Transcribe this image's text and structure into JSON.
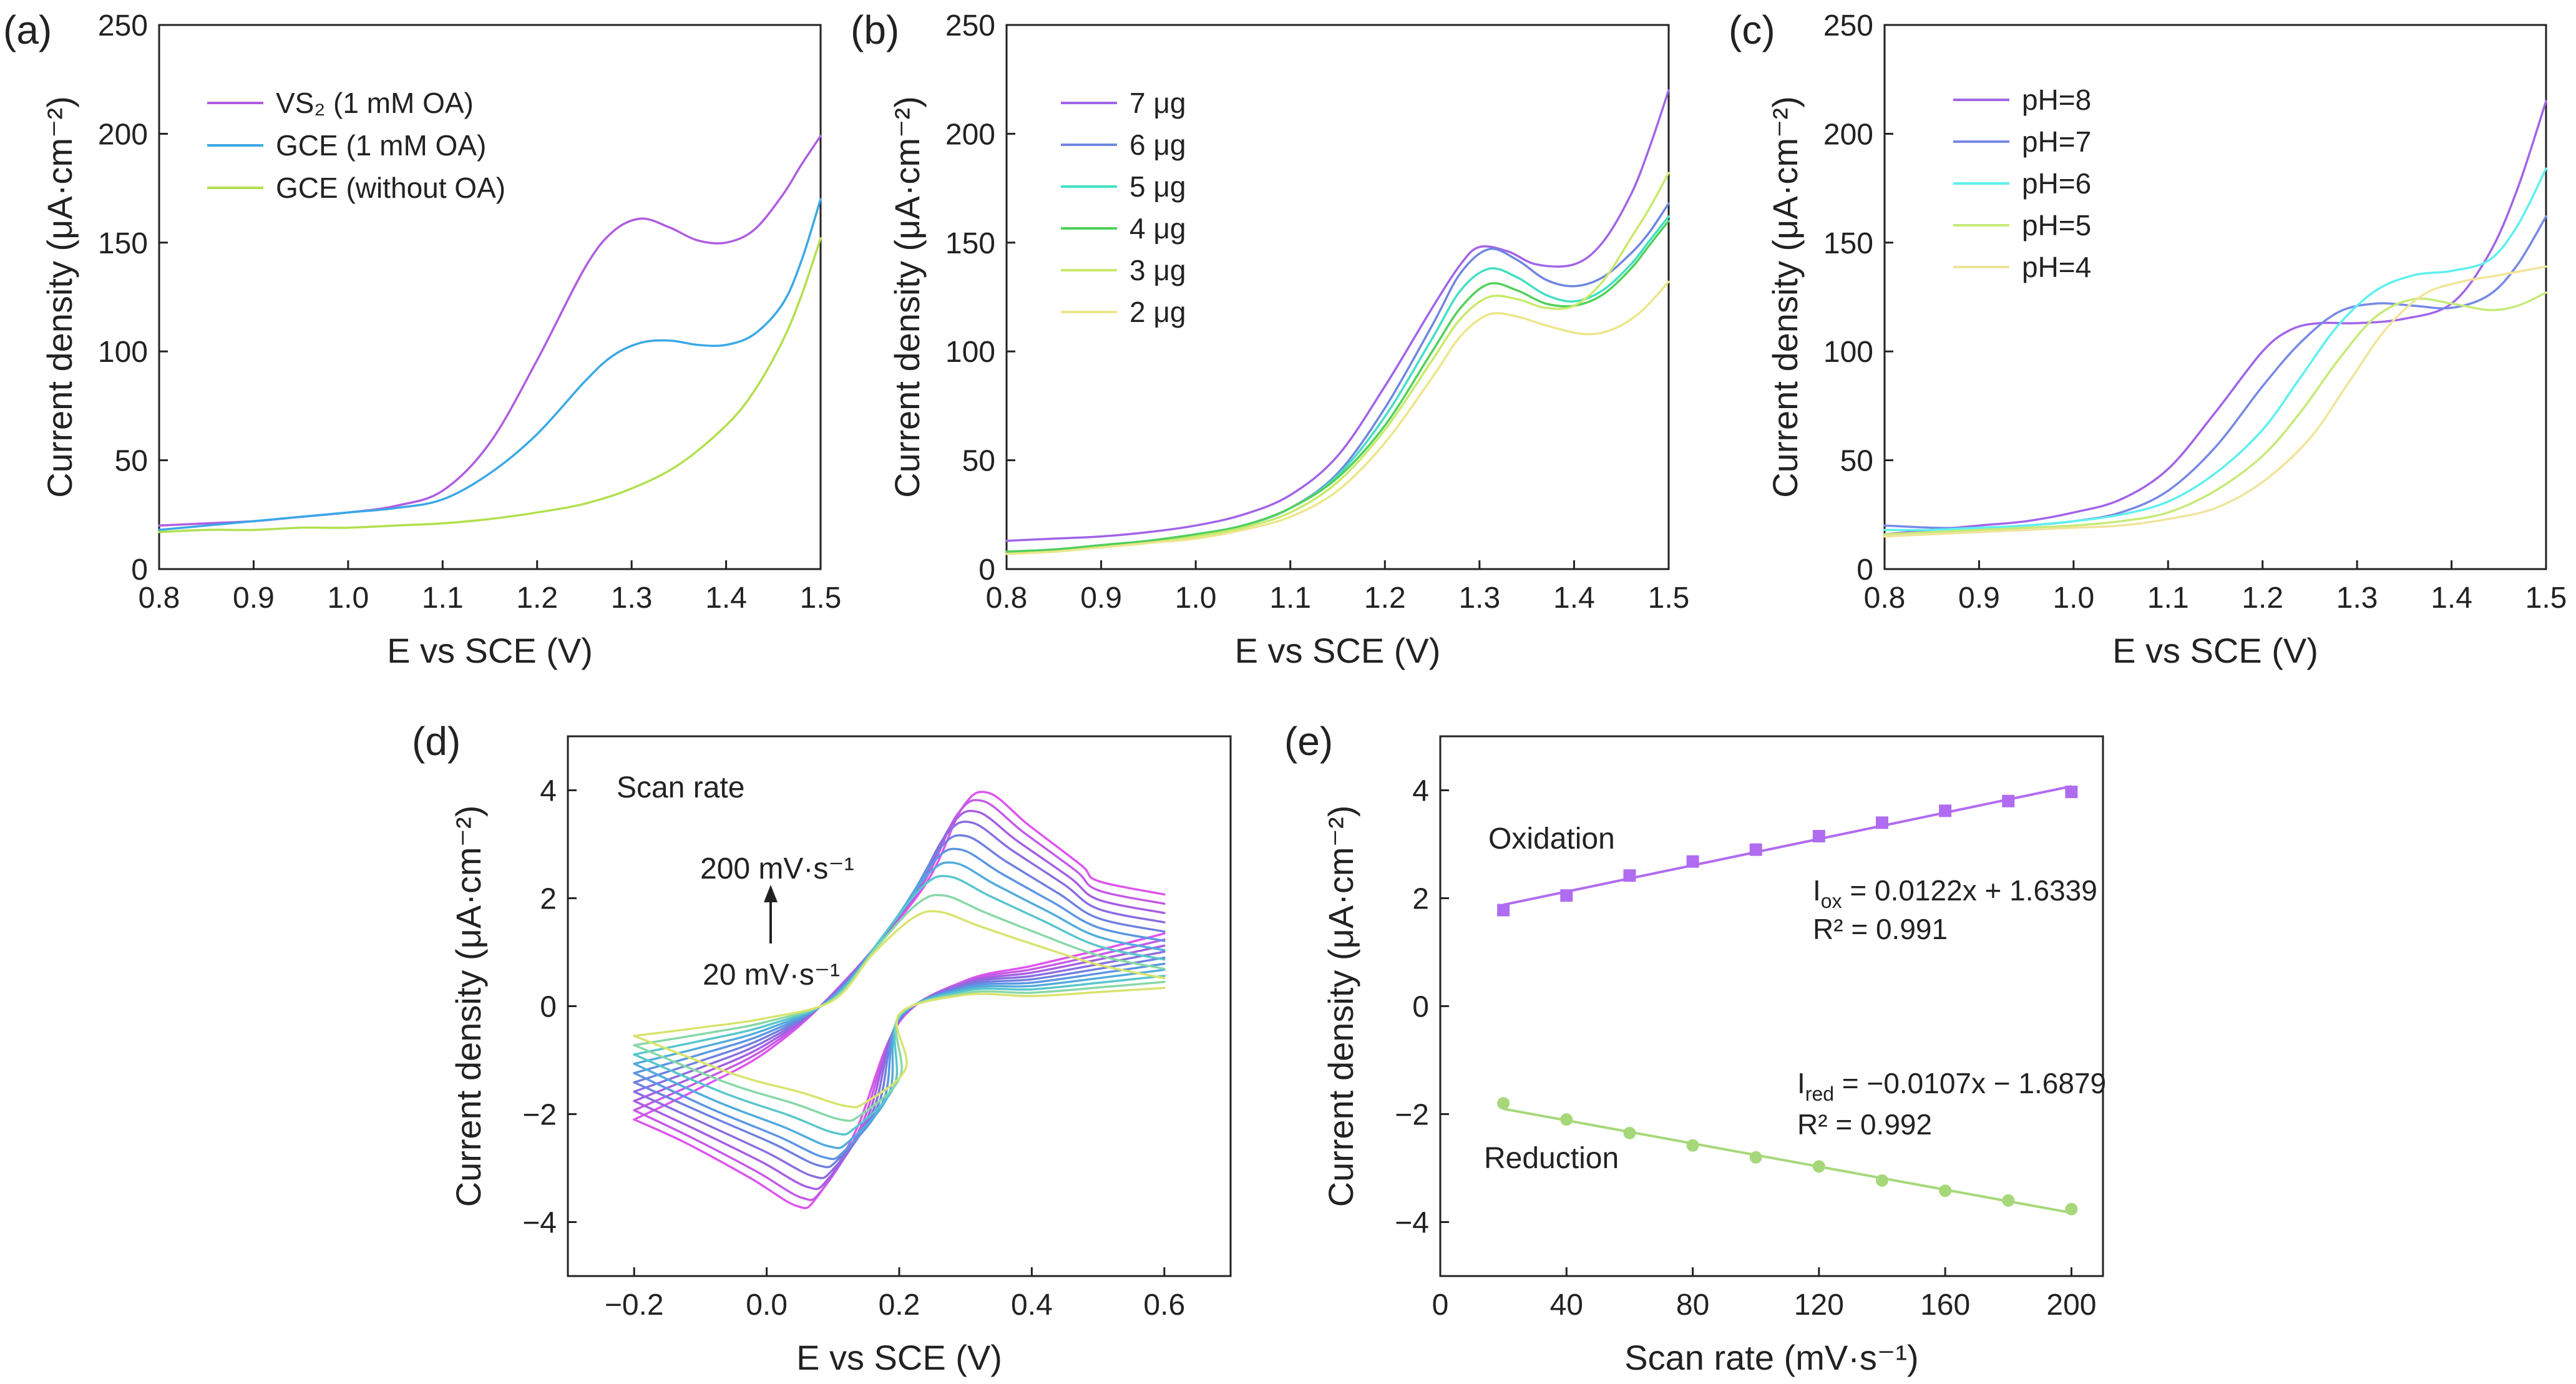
{
  "colors": {
    "purple": "#b05ce0",
    "blue": "#3aa8e6",
    "ygreen": "#b2e04e",
    "p7": "#a164e8",
    "p6": "#6f86e0",
    "p5": "#43dfc4",
    "p4": "#52d05a",
    "p3": "#c8ea6a",
    "p2": "#ece68a",
    "ph8": "#a164e8",
    "ph7": "#7689e6",
    "ph6": "#5ff0ef",
    "ph5": "#c6ea78",
    "ph4": "#f0e49a",
    "cv": [
      "#dd55ee",
      "#c55ae6",
      "#a65ee2",
      "#8a6ee0",
      "#6f80e0",
      "#5c96e2",
      "#52acdc",
      "#58c6cc",
      "#88d8a8",
      "#d8e46e"
    ],
    "ox": "#b06cf0",
    "red": "#a6d87a"
  },
  "chart_data": [
    {
      "id": "a",
      "type": "line",
      "panel_label": "(a)",
      "xlabel": "E vs SCE (V)",
      "ylabel": "Current density (μA·cm⁻²)",
      "xlim": [
        0.8,
        1.5
      ],
      "ylim": [
        0,
        250
      ],
      "xticks": [
        "0.8",
        "0.9",
        "1.0",
        "1.1",
        "1.2",
        "1.3",
        "1.4",
        "1.5"
      ],
      "yticks": [
        "0",
        "50",
        "100",
        "150",
        "200",
        "250"
      ],
      "series": [
        {
          "name": "VS₂  (1 mM OA)",
          "color": "purple",
          "x": [
            0.8,
            0.85,
            0.9,
            0.95,
            1.0,
            1.05,
            1.1,
            1.15,
            1.2,
            1.25,
            1.28,
            1.31,
            1.34,
            1.37,
            1.4,
            1.43,
            1.46,
            1.48,
            1.5
          ],
          "y": [
            20,
            21,
            22,
            24,
            26,
            29,
            36,
            58,
            96,
            138,
            155,
            161,
            157,
            151,
            150,
            156,
            172,
            186,
            199
          ]
        },
        {
          "name": "GCE (1 mM OA)",
          "color": "blue",
          "x": [
            0.8,
            0.85,
            0.9,
            0.95,
            1.0,
            1.05,
            1.1,
            1.15,
            1.2,
            1.25,
            1.28,
            1.31,
            1.34,
            1.37,
            1.4,
            1.43,
            1.46,
            1.48,
            1.5
          ],
          "y": [
            18,
            20,
            22,
            24,
            26,
            28,
            32,
            44,
            62,
            86,
            98,
            104,
            105,
            103,
            103,
            108,
            122,
            142,
            170
          ]
        },
        {
          "name": "GCE (without OA)",
          "color": "ygreen",
          "x": [
            0.8,
            0.85,
            0.9,
            0.95,
            1.0,
            1.05,
            1.1,
            1.15,
            1.2,
            1.25,
            1.3,
            1.35,
            1.4,
            1.43,
            1.46,
            1.48,
            1.5
          ],
          "y": [
            17,
            18,
            18,
            19,
            19,
            20,
            21,
            23,
            26,
            30,
            37,
            48,
            66,
            82,
            105,
            126,
            152
          ]
        }
      ]
    },
    {
      "id": "b",
      "type": "line",
      "panel_label": "(b)",
      "xlabel": "E vs SCE (V)",
      "ylabel": "Current density (μA·cm⁻²)",
      "xlim": [
        0.8,
        1.5
      ],
      "ylim": [
        0,
        250
      ],
      "xticks": [
        "0.8",
        "0.9",
        "1.0",
        "1.1",
        "1.2",
        "1.3",
        "1.4",
        "1.5"
      ],
      "yticks": [
        "0",
        "50",
        "100",
        "150",
        "200",
        "250"
      ],
      "series": [
        {
          "name": "7 μg",
          "color": "p7",
          "x": [
            0.8,
            0.85,
            0.9,
            0.95,
            1.0,
            1.05,
            1.1,
            1.15,
            1.2,
            1.25,
            1.28,
            1.3,
            1.33,
            1.36,
            1.4,
            1.43,
            1.46,
            1.48,
            1.5
          ],
          "y": [
            13,
            14,
            15,
            17,
            20,
            25,
            34,
            52,
            84,
            120,
            140,
            148,
            146,
            140,
            140,
            150,
            172,
            194,
            220
          ]
        },
        {
          "name": "6 μg",
          "color": "p6",
          "x": [
            0.8,
            0.85,
            0.9,
            0.95,
            1.0,
            1.05,
            1.1,
            1.15,
            1.2,
            1.25,
            1.28,
            1.31,
            1.34,
            1.37,
            1.4,
            1.43,
            1.46,
            1.48,
            1.5
          ],
          "y": [
            8,
            9,
            11,
            13,
            16,
            20,
            28,
            44,
            74,
            112,
            136,
            147,
            142,
            133,
            130,
            134,
            145,
            155,
            168
          ]
        },
        {
          "name": "5 μg",
          "color": "p5",
          "x": [
            0.8,
            0.85,
            0.9,
            0.95,
            1.0,
            1.05,
            1.1,
            1.15,
            1.2,
            1.25,
            1.28,
            1.31,
            1.34,
            1.37,
            1.4,
            1.43,
            1.46,
            1.48,
            1.5
          ],
          "y": [
            8,
            9,
            11,
            13,
            16,
            20,
            28,
            43,
            70,
            106,
            128,
            138,
            134,
            126,
            123,
            128,
            140,
            151,
            162
          ]
        },
        {
          "name": "4 μg",
          "color": "p4",
          "x": [
            0.8,
            0.85,
            0.9,
            0.95,
            1.0,
            1.05,
            1.1,
            1.15,
            1.2,
            1.25,
            1.28,
            1.31,
            1.34,
            1.37,
            1.4,
            1.43,
            1.46,
            1.48,
            1.5
          ],
          "y": [
            8,
            9,
            11,
            13,
            16,
            20,
            28,
            42,
            66,
            100,
            120,
            131,
            128,
            122,
            121,
            126,
            138,
            149,
            160
          ]
        },
        {
          "name": "3 μg",
          "color": "p3",
          "x": [
            0.8,
            0.85,
            0.9,
            0.95,
            1.0,
            1.05,
            1.1,
            1.15,
            1.2,
            1.25,
            1.28,
            1.31,
            1.34,
            1.37,
            1.4,
            1.43,
            1.46,
            1.48,
            1.5
          ],
          "y": [
            7,
            8,
            10,
            12,
            15,
            19,
            26,
            40,
            64,
            96,
            115,
            125,
            124,
            120,
            121,
            132,
            152,
            166,
            182
          ]
        },
        {
          "name": "2 μg",
          "color": "p2",
          "x": [
            0.8,
            0.85,
            0.9,
            0.95,
            1.0,
            1.05,
            1.1,
            1.15,
            1.2,
            1.25,
            1.28,
            1.31,
            1.34,
            1.37,
            1.41,
            1.44,
            1.47,
            1.5
          ],
          "y": [
            7,
            8,
            10,
            12,
            14,
            18,
            24,
            36,
            58,
            88,
            107,
            117,
            116,
            112,
            108,
            110,
            118,
            132
          ]
        }
      ]
    },
    {
      "id": "c",
      "type": "line",
      "panel_label": "(c)",
      "xlabel": "E vs SCE (V)",
      "ylabel": "Current density (μA·cm⁻²)",
      "xlim": [
        0.8,
        1.5
      ],
      "ylim": [
        0,
        250
      ],
      "xticks": [
        "0.8",
        "0.9",
        "1.0",
        "1.1",
        "1.2",
        "1.3",
        "1.4",
        "1.5"
      ],
      "yticks": [
        "0",
        "50",
        "100",
        "150",
        "200",
        "250"
      ],
      "series": [
        {
          "name": "pH=8",
          "color": "ph8",
          "x": [
            0.8,
            0.85,
            0.9,
            0.95,
            1.0,
            1.05,
            1.1,
            1.15,
            1.2,
            1.23,
            1.26,
            1.3,
            1.35,
            1.4,
            1.44,
            1.47,
            1.5
          ],
          "y": [
            16,
            18,
            20,
            22,
            26,
            32,
            46,
            72,
            100,
            110,
            113,
            113,
            115,
            122,
            145,
            175,
            215
          ]
        },
        {
          "name": "pH=7",
          "color": "ph7",
          "x": [
            0.8,
            0.85,
            0.9,
            0.95,
            1.0,
            1.05,
            1.1,
            1.15,
            1.2,
            1.24,
            1.28,
            1.32,
            1.36,
            1.4,
            1.44,
            1.47,
            1.5
          ],
          "y": [
            20,
            19,
            19,
            20,
            22,
            26,
            36,
            56,
            84,
            104,
            118,
            122,
            121,
            120,
            126,
            140,
            162
          ]
        },
        {
          "name": "pH=6",
          "color": "ph6",
          "x": [
            0.8,
            0.85,
            0.9,
            0.95,
            1.0,
            1.05,
            1.1,
            1.15,
            1.2,
            1.24,
            1.28,
            1.32,
            1.36,
            1.4,
            1.44,
            1.47,
            1.5
          ],
          "y": [
            18,
            18,
            19,
            20,
            22,
            25,
            31,
            44,
            64,
            88,
            112,
            128,
            135,
            137,
            142,
            158,
            184
          ]
        },
        {
          "name": "pH=5",
          "color": "ph5",
          "x": [
            0.8,
            0.85,
            0.9,
            0.95,
            1.0,
            1.05,
            1.1,
            1.15,
            1.2,
            1.24,
            1.28,
            1.32,
            1.36,
            1.4,
            1.44,
            1.47,
            1.5
          ],
          "y": [
            16,
            17,
            18,
            19,
            20,
            22,
            26,
            36,
            52,
            72,
            96,
            116,
            124,
            122,
            119,
            121,
            127
          ]
        },
        {
          "name": "pH=4",
          "color": "ph4",
          "x": [
            0.8,
            0.85,
            0.9,
            0.95,
            1.0,
            1.05,
            1.1,
            1.15,
            1.2,
            1.25,
            1.29,
            1.33,
            1.37,
            1.41,
            1.45,
            1.5
          ],
          "y": [
            15,
            16,
            17,
            18,
            19,
            20,
            23,
            28,
            40,
            60,
            85,
            110,
            126,
            132,
            135,
            139
          ]
        }
      ]
    },
    {
      "id": "d",
      "type": "line",
      "panel_label": "(d)",
      "xlabel": "E vs SCE (V)",
      "ylabel": "Current density (μA·cm⁻²)",
      "xlim": [
        -0.3,
        0.7
      ],
      "ylim": [
        -5,
        5
      ],
      "xticks": [
        "−0.2",
        "0.0",
        "0.2",
        "0.4",
        "0.6"
      ],
      "yticks": [
        "−4",
        "−2",
        "0",
        "2",
        "4"
      ],
      "annotation": {
        "title": "Scan rate",
        "top": "200 mV·s⁻¹",
        "bottom": "20 mV·s⁻¹"
      },
      "scan_rates": [
        200,
        180,
        160,
        140,
        120,
        100,
        80,
        60,
        40,
        20
      ],
      "anodic_peak": [
        3.95,
        3.8,
        3.6,
        3.4,
        3.15,
        2.9,
        2.65,
        2.4,
        2.05,
        1.75
      ],
      "cathodic_peak": [
        -3.7,
        -3.55,
        -3.35,
        -3.15,
        -2.95,
        -2.8,
        -2.6,
        -2.35,
        -2.1,
        -1.85
      ]
    },
    {
      "id": "e",
      "type": "scatter",
      "panel_label": "(e)",
      "xlabel": "Scan rate (mV·s⁻¹)",
      "ylabel": "Current density (μA·cm⁻²)",
      "xlim": [
        0,
        210
      ],
      "ylim": [
        -5,
        5
      ],
      "xticks": [
        "0",
        "40",
        "80",
        "120",
        "160",
        "200"
      ],
      "yticks": [
        "−4",
        "−2",
        "0",
        "2",
        "4"
      ],
      "series": [
        {
          "name": "Oxidation",
          "color": "ox",
          "marker": "square",
          "x": [
            20,
            40,
            60,
            80,
            100,
            120,
            140,
            160,
            180,
            200
          ],
          "y": [
            1.78,
            2.05,
            2.42,
            2.68,
            2.9,
            3.15,
            3.4,
            3.62,
            3.8,
            3.97
          ],
          "fit": {
            "slope": 0.0122,
            "intercept": 1.6339
          },
          "equation": "= 0.0122x + 1.6339",
          "r2": "R² = 0.991"
        },
        {
          "name": "Reduction",
          "color": "red",
          "marker": "circle",
          "x": [
            20,
            40,
            60,
            80,
            100,
            120,
            140,
            160,
            180,
            200
          ],
          "y": [
            -1.8,
            -2.1,
            -2.35,
            -2.58,
            -2.8,
            -2.97,
            -3.23,
            -3.42,
            -3.6,
            -3.76
          ],
          "fit": {
            "slope": -0.0107,
            "intercept": -1.6879
          },
          "equation": "= −0.0107x − 1.6879",
          "r2": "R²  = 0.992"
        }
      ]
    }
  ]
}
